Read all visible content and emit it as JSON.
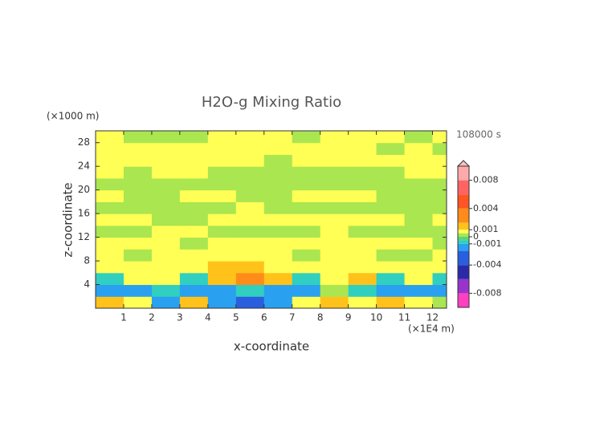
{
  "chart_data": {
    "type": "contour",
    "title": "H2O-g Mixing Ratio",
    "xlabel": "x-coordinate",
    "ylabel": "z-coordinate",
    "x_unit": "(×1E4 m)",
    "y_unit": "(×1000 m)",
    "time_label": "108000 s",
    "xlim": [
      0,
      12.5
    ],
    "ylim": [
      0,
      30
    ],
    "xticks": [
      1,
      2,
      3,
      4,
      5,
      6,
      7,
      8,
      9,
      10,
      11,
      12
    ],
    "yticks": [
      4,
      8,
      12,
      16,
      20,
      24,
      28
    ],
    "x": [
      0.5,
      1.5,
      2.5,
      3.5,
      4.5,
      5.5,
      6.5,
      7.5,
      8.5,
      9.5,
      10.5,
      11.5,
      12.5
    ],
    "y": [
      1,
      3,
      5,
      7,
      9,
      11,
      13,
      15,
      17,
      19,
      21,
      23,
      25,
      27,
      29
    ],
    "z": [
      [
        0.0015,
        0.0007,
        -0.0015,
        0.0015,
        -0.0015,
        -0.003,
        -0.0015,
        0.0007,
        0.0015,
        0.0007,
        0.0015,
        0.0007,
        0.0002
      ],
      [
        -0.0015,
        -0.0015,
        -0.0007,
        -0.0015,
        -0.0015,
        -0.0007,
        -0.0015,
        -0.0015,
        0.0002,
        -0.0007,
        -0.0015,
        -0.0015,
        -0.0015
      ],
      [
        -0.0007,
        0.0007,
        0.0007,
        -0.0007,
        0.0015,
        0.003,
        0.0015,
        -0.0007,
        0.0007,
        0.0015,
        -0.0007,
        0.0007,
        -0.0007
      ],
      [
        0.0007,
        0.0007,
        0.0007,
        0.0007,
        0.0015,
        0.0015,
        0.0007,
        0.0007,
        0.0007,
        0.0007,
        0.0007,
        0.0007,
        0.0007
      ],
      [
        0.0007,
        0.0002,
        0.0007,
        0.0007,
        0.0007,
        0.0007,
        0.0007,
        0.0002,
        0.0007,
        0.0007,
        0.0002,
        0.0002,
        0.0007
      ],
      [
        0.0007,
        0.0007,
        0.0007,
        0.0002,
        0.0007,
        0.0007,
        0.0007,
        0.0007,
        0.0007,
        0.0007,
        0.0007,
        0.0007,
        0.0002
      ],
      [
        0.0002,
        0.0002,
        0.0007,
        0.0007,
        0.0002,
        0.0002,
        0.0002,
        0.0002,
        0.0007,
        0.0002,
        0.0002,
        0.0002,
        0.0002
      ],
      [
        0.0007,
        0.0007,
        0.0002,
        0.0002,
        0.0007,
        0.0007,
        0.0007,
        0.0007,
        0.0007,
        0.0007,
        0.0007,
        0.0002,
        0.0007
      ],
      [
        0.0002,
        0.0002,
        0.0002,
        0.0002,
        0.0002,
        0.0007,
        0.0002,
        0.0002,
        0.0002,
        0.0002,
        0.0002,
        0.0002,
        0.0002
      ],
      [
        0.0007,
        0.0002,
        0.0002,
        0.0007,
        0.0007,
        0.0002,
        0.0002,
        0.0007,
        0.0007,
        0.0007,
        0.0002,
        0.0002,
        0.0002
      ],
      [
        0.0002,
        0.0002,
        0.0002,
        0.0002,
        0.0002,
        0.0002,
        0.0002,
        0.0002,
        0.0002,
        0.0002,
        0.0002,
        0.0002,
        0.0002
      ],
      [
        0.0007,
        0.0002,
        0.0007,
        0.0007,
        0.0002,
        0.0002,
        0.0002,
        0.0002,
        0.0002,
        0.0002,
        0.0002,
        0.0007,
        0.0007
      ],
      [
        0.0007,
        0.0007,
        0.0007,
        0.0007,
        0.0007,
        0.0007,
        0.0002,
        0.0007,
        0.0007,
        0.0007,
        0.0007,
        0.0007,
        0.0007
      ],
      [
        0.0007,
        0.0007,
        0.0007,
        0.0007,
        0.0007,
        0.0007,
        0.0007,
        0.0007,
        0.0007,
        0.0007,
        0.0002,
        0.0007,
        0.0002
      ],
      [
        0.0007,
        0.0002,
        0.0002,
        0.0002,
        0.0007,
        0.0007,
        0.0007,
        0.0002,
        0.0007,
        0.0007,
        0.0007,
        0.0002,
        0.0007
      ]
    ],
    "levels": [
      -0.01,
      -0.008,
      -0.006,
      -0.004,
      -0.002,
      -0.001,
      -0.0005,
      0,
      0.0005,
      0.001,
      0.002,
      0.004,
      0.006,
      0.008,
      0.01
    ],
    "colors": [
      "#ff40c0",
      "#9933cc",
      "#2a2aa8",
      "#2a5ee0",
      "#2aa0f0",
      "#30cfc0",
      "#5ad47a",
      "#aae650",
      "#ffff55",
      "#ffc21a",
      "#ff8c1a",
      "#ff5522",
      "#ff6464",
      "#ffaaaa"
    ],
    "over_color": "#ffc0c0",
    "cbar_ticks": [
      0.008,
      0.004,
      0.001,
      0,
      -0.001,
      -0.004,
      -0.008
    ]
  }
}
